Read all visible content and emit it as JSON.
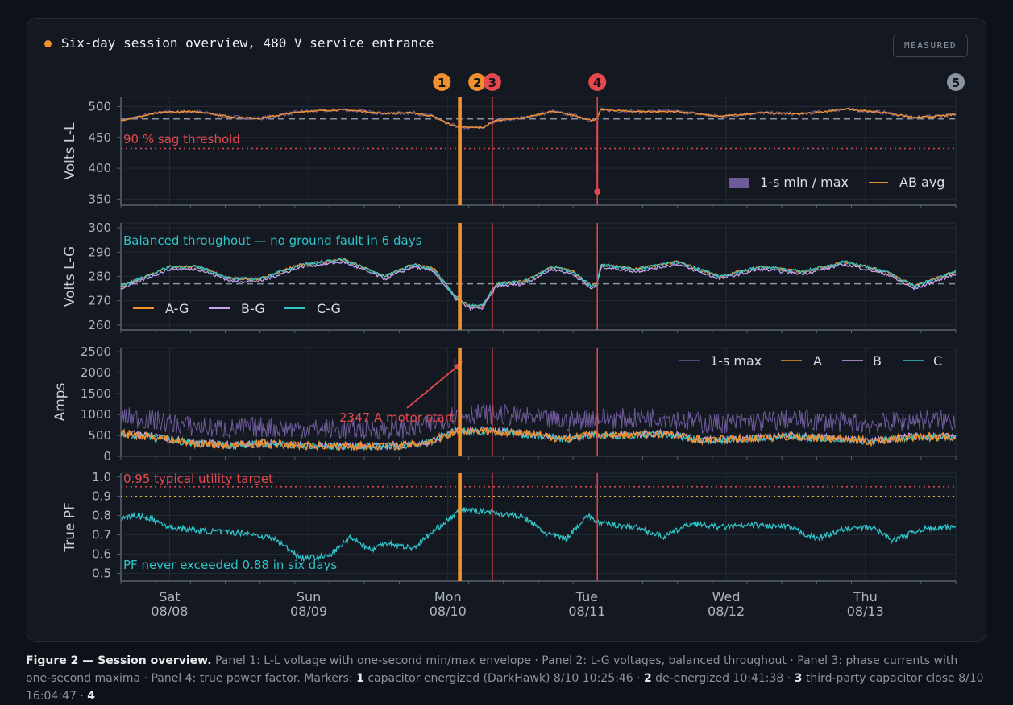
{
  "header": {
    "title": "Six-day session overview, 480 V service entrance",
    "badge": "MEASURED"
  },
  "colors": {
    "orange": "#f0902e",
    "red": "#e5484d",
    "cyan": "#2ec4c8",
    "purple": "#c7a4ef",
    "envelope": "#6e5a98",
    "reference": "#8b93a1",
    "pf_target": "#e5b82e",
    "marker_gray": "#8b93a1"
  },
  "markers": [
    {
      "id": "1",
      "day": 2.434,
      "color": "#f0902e",
      "thick": true
    },
    {
      "id": "2",
      "day": 2.445,
      "color": "#f0902e",
      "thick": false
    },
    {
      "id": "3",
      "day": 2.669,
      "color": "#e5484d",
      "thick": false
    },
    {
      "id": "4",
      "day": 3.424,
      "color": "#e5484d",
      "thick": false
    },
    {
      "id": "5",
      "day": 6.0,
      "color": "#8b93a1",
      "thick": false
    }
  ],
  "x_axis": {
    "ticks": [
      {
        "day": 0.35,
        "label1": "Sat",
        "label2": "08/08"
      },
      {
        "day": 1.35,
        "label1": "Sun",
        "label2": "08/09"
      },
      {
        "day": 2.35,
        "label1": "Mon",
        "label2": "08/10"
      },
      {
        "day": 3.35,
        "label1": "Tue",
        "label2": "08/11"
      },
      {
        "day": 4.35,
        "label1": "Wed",
        "label2": "08/12"
      },
      {
        "day": 5.35,
        "label1": "Thu",
        "label2": "08/13"
      }
    ]
  },
  "panels": {
    "ll": {
      "ylabel": "Volts L-L",
      "ticks": [
        500,
        450,
        400,
        350
      ],
      "ylim": [
        340,
        515
      ],
      "annotation": "90 % sag threshold",
      "legend": [
        {
          "label": "1-s min / max",
          "kind": "swatch",
          "color": "#6e5a98"
        },
        {
          "label": "AB avg",
          "kind": "line",
          "color": "#f0902e"
        }
      ]
    },
    "lg": {
      "ylabel": "Volts L-G",
      "ticks": [
        300,
        290,
        280,
        270,
        260
      ],
      "ylim": [
        258,
        302
      ],
      "annotation": "Balanced throughout — no ground fault in 6 days",
      "legend": [
        {
          "label": "A-G",
          "color": "#f0902e"
        },
        {
          "label": "B-G",
          "color": "#c7a4ef"
        },
        {
          "label": "C-G",
          "color": "#2ec4c8"
        }
      ]
    },
    "amps": {
      "ylabel": "Amps",
      "ticks": [
        2500,
        2000,
        1500,
        1000,
        500,
        0
      ],
      "ylim": [
        0,
        2600
      ],
      "annotation": "2347 A motor start",
      "legend": [
        {
          "label": "1-s max",
          "color": "#6e5a98"
        },
        {
          "label": "A",
          "color": "#f0902e"
        },
        {
          "label": "B",
          "color": "#c7a4ef"
        },
        {
          "label": "C",
          "color": "#2ec4c8"
        }
      ]
    },
    "pf": {
      "ylabel": "True PF",
      "ticks": [
        "1.0",
        "0.9",
        "0.8",
        "0.7",
        "0.6",
        "0.5"
      ],
      "ylim": [
        0.46,
        1.02
      ],
      "annotation_top": "0.95 typical utility target",
      "annotation_bottom": "PF never exceeded 0.88 in six days"
    }
  },
  "chart_data": [
    {
      "type": "line",
      "title": "",
      "ylabel": "Volts L-L",
      "x_unit": "days from session start (Sat 08/08)",
      "xlim": [
        0,
        6
      ],
      "ylim": [
        340,
        515
      ],
      "reference_lines": [
        {
          "y": 480,
          "label": ""
        },
        {
          "y": 432,
          "label": "90 % sag threshold"
        }
      ],
      "series": [
        {
          "name": "AB avg",
          "x": [
            0,
            0.3,
            0.55,
            0.8,
            1.0,
            1.3,
            1.6,
            1.9,
            2.1,
            2.25,
            2.35,
            2.45,
            2.6,
            2.7,
            2.9,
            3.1,
            3.25,
            3.38,
            3.42,
            3.45,
            3.7,
            4.0,
            4.3,
            4.6,
            4.9,
            5.2,
            5.5,
            5.7,
            6.0
          ],
          "y": [
            478,
            491,
            492,
            483,
            481,
            492,
            495,
            489,
            490,
            484,
            472,
            466,
            466,
            478,
            482,
            492,
            486,
            478,
            480,
            495,
            492,
            492,
            484,
            490,
            488,
            496,
            490,
            482,
            487
          ]
        },
        {
          "name": "1-s min / max",
          "note_min": 362,
          "x_min": 3.424
        }
      ]
    },
    {
      "type": "line",
      "title": "",
      "ylabel": "Volts L-G",
      "x_unit": "days from session start (Sat 08/08)",
      "xlim": [
        0,
        6
      ],
      "ylim": [
        258,
        302
      ],
      "reference_lines": [
        {
          "y": 277,
          "label": ""
        }
      ],
      "series": [
        {
          "name": "A-G",
          "x": [
            0,
            0.35,
            0.55,
            0.8,
            1.0,
            1.3,
            1.6,
            1.9,
            2.1,
            2.25,
            2.4,
            2.5,
            2.6,
            2.7,
            2.9,
            3.1,
            3.25,
            3.38,
            3.42,
            3.45,
            3.7,
            4.0,
            4.3,
            4.6,
            4.9,
            5.2,
            5.5,
            5.7,
            6.0
          ],
          "y": [
            276,
            284,
            284,
            279,
            279,
            285,
            287,
            280,
            285,
            283,
            272,
            268,
            268,
            277,
            278,
            284,
            282,
            276,
            277,
            285,
            283,
            286,
            280,
            284,
            282,
            286,
            282,
            276,
            282
          ]
        },
        {
          "name": "B-G",
          "offset": -1
        },
        {
          "name": "C-G",
          "offset": 0
        }
      ]
    },
    {
      "type": "line",
      "title": "",
      "ylabel": "Amps",
      "x_unit": "days from session start (Sat 08/08)",
      "xlim": [
        0,
        6
      ],
      "ylim": [
        0,
        2600
      ],
      "series": [
        {
          "name": "A",
          "x": [
            0,
            0.2,
            0.5,
            0.8,
            1.0,
            1.3,
            1.6,
            1.9,
            2.1,
            2.25,
            2.4,
            2.6,
            2.8,
            3.0,
            3.2,
            3.4,
            3.6,
            3.9,
            4.2,
            4.5,
            4.8,
            5.1,
            5.4,
            5.7,
            6.0
          ],
          "y": [
            550,
            480,
            320,
            260,
            300,
            260,
            240,
            250,
            270,
            380,
            600,
            620,
            580,
            500,
            420,
            530,
            500,
            540,
            380,
            420,
            480,
            430,
            360,
            470,
            460
          ]
        },
        {
          "name": "1-s max",
          "peak": 2347,
          "peak_x": 2.4
        },
        {
          "name": "B",
          "offset": 10
        },
        {
          "name": "C",
          "offset": -10
        }
      ]
    },
    {
      "type": "line",
      "title": "",
      "ylabel": "True PF",
      "x_unit": "days from session start (Sat 08/08)",
      "xlim": [
        0,
        6
      ],
      "ylim": [
        0.46,
        1.02
      ],
      "reference_lines": [
        {
          "y": 0.95,
          "label": "0.95 typical utility target"
        },
        {
          "y": 0.9,
          "label": ""
        }
      ],
      "series": [
        {
          "name": "C",
          "x": [
            0,
            0.1,
            0.2,
            0.35,
            0.6,
            0.9,
            1.1,
            1.3,
            1.5,
            1.65,
            1.8,
            1.9,
            2.1,
            2.3,
            2.45,
            2.65,
            2.9,
            3.05,
            3.2,
            3.35,
            3.45,
            3.7,
            3.9,
            4.1,
            4.3,
            4.55,
            4.8,
            5.0,
            5.2,
            5.4,
            5.55,
            5.75,
            6.0
          ],
          "y": [
            0.78,
            0.8,
            0.79,
            0.74,
            0.72,
            0.71,
            0.68,
            0.58,
            0.59,
            0.69,
            0.62,
            0.66,
            0.63,
            0.75,
            0.83,
            0.82,
            0.79,
            0.71,
            0.68,
            0.8,
            0.76,
            0.74,
            0.69,
            0.76,
            0.74,
            0.75,
            0.74,
            0.68,
            0.73,
            0.74,
            0.67,
            0.73,
            0.74
          ]
        }
      ]
    }
  ],
  "caption": {
    "lead": "Figure 2 — Session overview.",
    "text": " Panel 1: L-L voltage with one-second min/max envelope · Panel 2: L-G voltages, balanced throughout · Panel 3: phase currents with one-second maxima · Panel 4: true power factor. Markers: ",
    "m1": "1",
    "t1": " capacitor energized (DarkHawk) 8/10 10:25:46 · ",
    "m2": "2",
    "t2": " de-energized 10:41:38 · ",
    "m3": "3",
    "t3": " third-party capacitor close 8/10 16:04:47 · ",
    "m4": "4"
  }
}
